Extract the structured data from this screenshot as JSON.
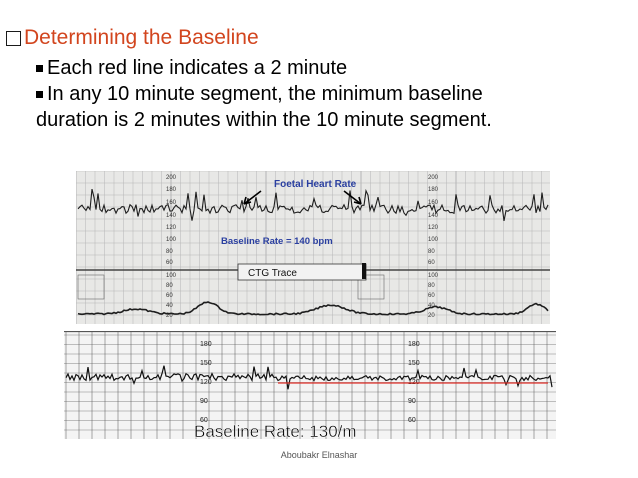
{
  "heading": {
    "title": "Determining the Baseline"
  },
  "bullets": [
    {
      "text": "Each red line indicates a 2 minute"
    },
    {
      "text": "In any 10 minute segment, the minimum baseline"
    },
    {
      "text": "duration is 2 minutes within the 10 minute segment."
    }
  ],
  "ctg_top": {
    "label_fhr": "Foetal Heart Rate",
    "label_baseline": "Baseline Rate = 140 bpm",
    "label_trace": "CTG Trace",
    "fhr_scale": [
      "200",
      "180",
      "160",
      "140",
      "120",
      "100",
      "80",
      "60"
    ],
    "toco_scale": [
      "100",
      "80",
      "60",
      "40",
      "20"
    ]
  },
  "ctg_bottom": {
    "label_baseline": "Baseline Rate: 130/m",
    "scale": [
      "180",
      "150",
      "120",
      "90",
      "60"
    ]
  },
  "footer": {
    "author": "Aboubakr Elnashar"
  },
  "colors": {
    "title": "#d2451e",
    "red_line": "#e0302a"
  }
}
